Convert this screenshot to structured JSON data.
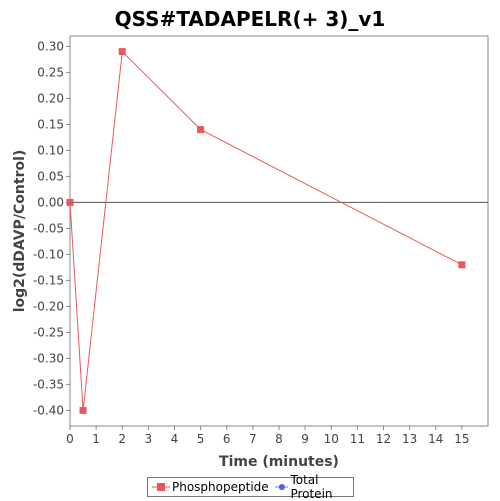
{
  "chart_data": {
    "type": "line",
    "title": "QSS#TADAPELR(+ 3)_v1",
    "xlabel": "Time (minutes)",
    "ylabel": "log2(dDAVP/Control)",
    "xlim": [
      0,
      16
    ],
    "ylim": [
      -0.43,
      0.32
    ],
    "x_ticks": [
      0,
      1,
      2,
      3,
      4,
      5,
      6,
      7,
      8,
      9,
      10,
      11,
      12,
      13,
      14,
      15
    ],
    "y_ticks": [
      0.3,
      0.25,
      0.2,
      0.15,
      0.1,
      0.05,
      0.0,
      -0.05,
      -0.1,
      -0.15,
      -0.2,
      -0.25,
      -0.3,
      -0.35,
      -0.4
    ],
    "zero_line": true,
    "grid": false,
    "legend_position": "bottom",
    "series": [
      {
        "name": "Phosphopeptide",
        "color": "#e8585a",
        "marker": "square",
        "x": [
          0,
          0.5,
          2,
          5,
          15
        ],
        "y": [
          0.0,
          -0.4,
          0.29,
          0.14,
          -0.12
        ]
      },
      {
        "name": "Total Protein",
        "color": "#5a5ae8",
        "marker": "circle",
        "x": [],
        "y": []
      }
    ]
  }
}
